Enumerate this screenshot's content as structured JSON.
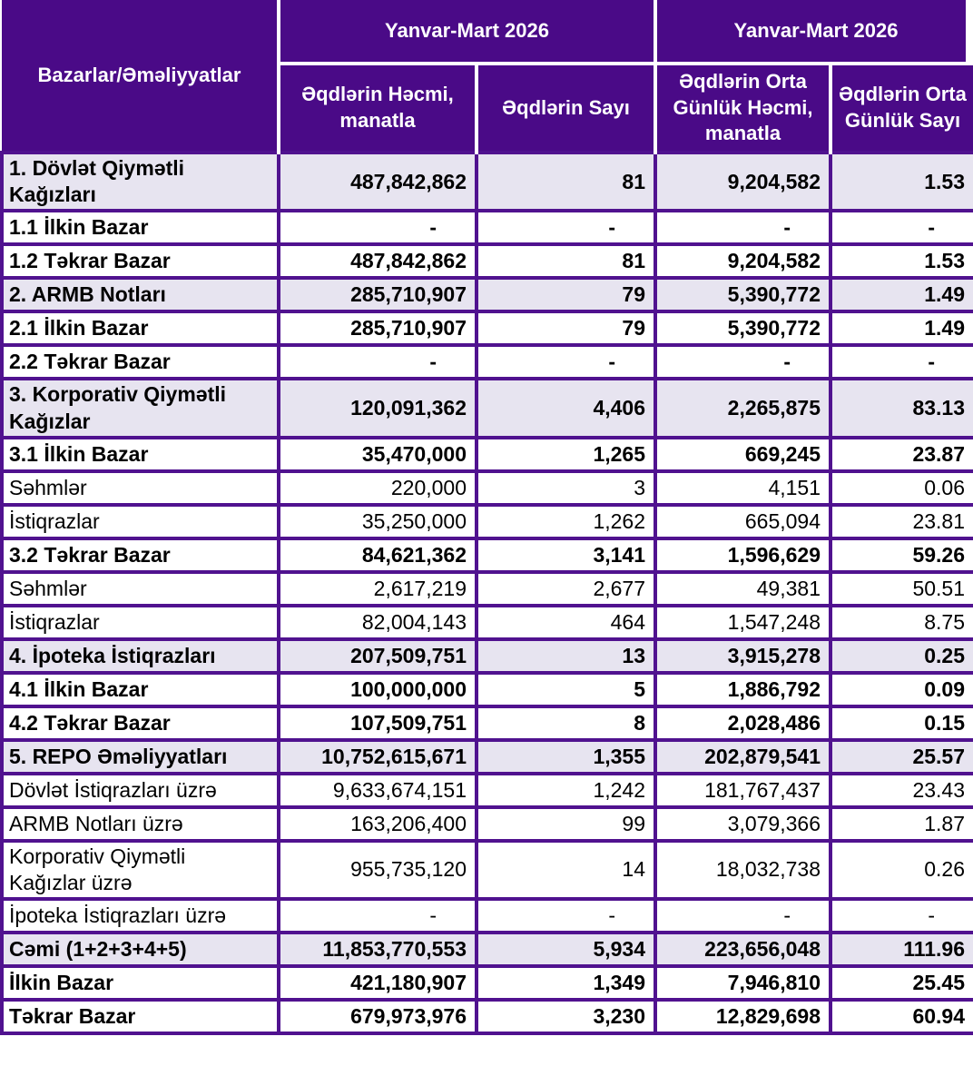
{
  "chart_data": {
    "type": "table",
    "corner_header": "Bazarlar/Əməliyyatlar",
    "column_groups": [
      "Yanvar-Mart 2026",
      "Yanvar-Mart 2026"
    ],
    "columns": [
      "Əqdlərin Həcmi,\nmanatla",
      "Əqdlərin Sayı",
      "Əqdlərin Orta\nGünlük Həcmi,\nmanatla",
      "Əqdlərin Orta\nGünlük Sayı"
    ],
    "rows": [
      {
        "label": "1. Dövlət Qiymətli\nKağızları",
        "values": [
          "487,842,862",
          "81",
          "9,204,582",
          "1.53"
        ],
        "style": "section"
      },
      {
        "label": "1.1 İlkin Bazar",
        "values": [
          "-",
          "-",
          "-",
          "-"
        ],
        "style": "bold"
      },
      {
        "label": "1.2 Təkrar Bazar",
        "values": [
          "487,842,862",
          "81",
          "9,204,582",
          "1.53"
        ],
        "style": "bold"
      },
      {
        "label": "2. ARMB Notları",
        "values": [
          "285,710,907",
          "79",
          "5,390,772",
          "1.49"
        ],
        "style": "section"
      },
      {
        "label": "2.1 İlkin Bazar",
        "values": [
          "285,710,907",
          "79",
          "5,390,772",
          "1.49"
        ],
        "style": "bold"
      },
      {
        "label": "2.2 Təkrar Bazar",
        "values": [
          "-",
          "-",
          "-",
          "-"
        ],
        "style": "bold"
      },
      {
        "label": "3. Korporativ Qiymətli\nKağızlar",
        "values": [
          "120,091,362",
          "4,406",
          "2,265,875",
          "83.13"
        ],
        "style": "section"
      },
      {
        "label": "3.1 İlkin Bazar",
        "values": [
          "35,470,000",
          "1,265",
          "669,245",
          "23.87"
        ],
        "style": "bold"
      },
      {
        "label": "Səhmlər",
        "values": [
          "220,000",
          "3",
          "4,151",
          "0.06"
        ],
        "style": "plain"
      },
      {
        "label": "İstiqrazlar",
        "values": [
          "35,250,000",
          "1,262",
          "665,094",
          "23.81"
        ],
        "style": "plain"
      },
      {
        "label": "3.2 Təkrar Bazar",
        "values": [
          "84,621,362",
          "3,141",
          "1,596,629",
          "59.26"
        ],
        "style": "bold"
      },
      {
        "label": "Səhmlər",
        "values": [
          "2,617,219",
          "2,677",
          "49,381",
          "50.51"
        ],
        "style": "plain"
      },
      {
        "label": "İstiqrazlar",
        "values": [
          "82,004,143",
          "464",
          "1,547,248",
          "8.75"
        ],
        "style": "plain"
      },
      {
        "label": "4. İpoteka İstiqrazları",
        "values": [
          "207,509,751",
          "13",
          "3,915,278",
          "0.25"
        ],
        "style": "section"
      },
      {
        "label": "4.1 İlkin Bazar",
        "values": [
          "100,000,000",
          "5",
          "1,886,792",
          "0.09"
        ],
        "style": "bold"
      },
      {
        "label": "4.2 Təkrar Bazar",
        "values": [
          "107,509,751",
          "8",
          "2,028,486",
          "0.15"
        ],
        "style": "bold"
      },
      {
        "label": "5. REPO Əməliyyatları",
        "values": [
          "10,752,615,671",
          "1,355",
          "202,879,541",
          "25.57"
        ],
        "style": "section"
      },
      {
        "label": "Dövlət İstiqrazları üzrə",
        "values": [
          "9,633,674,151",
          "1,242",
          "181,767,437",
          "23.43"
        ],
        "style": "plain"
      },
      {
        "label": "ARMB Notları üzrə",
        "values": [
          "163,206,400",
          "99",
          "3,079,366",
          "1.87"
        ],
        "style": "plain"
      },
      {
        "label": "Korporativ Qiymətli\nKağızlar üzrə",
        "values": [
          "955,735,120",
          "14",
          "18,032,738",
          "0.26"
        ],
        "style": "plain"
      },
      {
        "label": "İpoteka İstiqrazları üzrə",
        "values": [
          "-",
          "-",
          "-",
          "-"
        ],
        "style": "plain"
      },
      {
        "label": "Cəmi (1+2+3+4+5)",
        "values": [
          "11,853,770,553",
          "5,934",
          "223,656,048",
          "111.96"
        ],
        "style": "section"
      },
      {
        "label": "İlkin Bazar",
        "values": [
          "421,180,907",
          "1,349",
          "7,946,810",
          "25.45"
        ],
        "style": "bold"
      },
      {
        "label": "Təkrar Bazar",
        "values": [
          "679,973,976",
          "3,230",
          "12,829,698",
          "60.94"
        ],
        "style": "bold"
      }
    ],
    "colors": {
      "header_bg": "#4a0a87",
      "border": "#50128f",
      "section_row_bg": "#e7e4f0",
      "header_text": "#ffffff",
      "body_text": "#000000"
    }
  }
}
